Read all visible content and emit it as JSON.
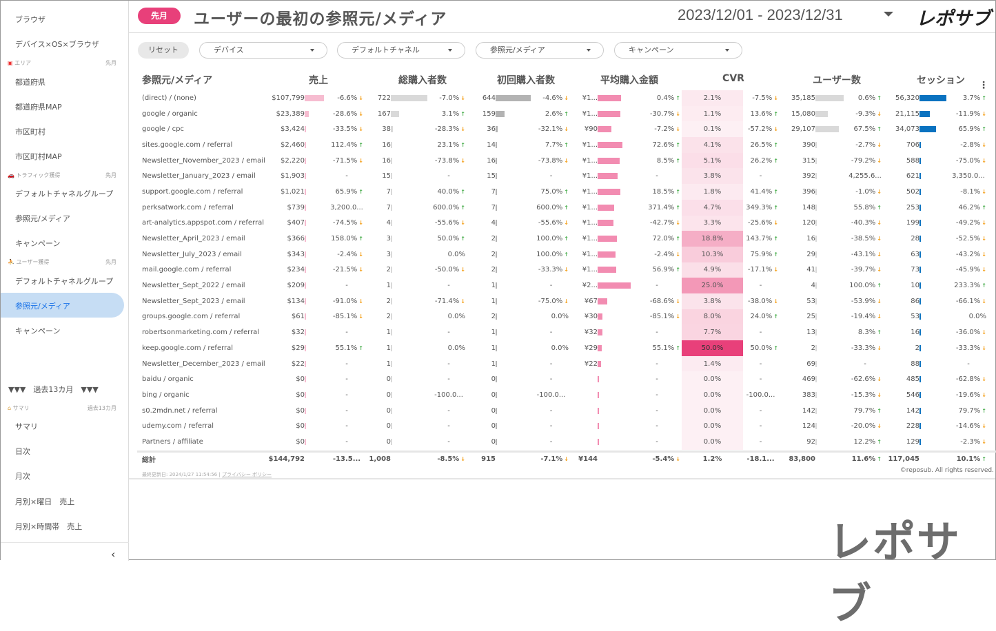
{
  "sidebar": {
    "items_top": [
      "ブラウザ",
      "デバイス×OS×ブラウザ"
    ],
    "sec_area": {
      "label": "エリア",
      "period": "先月",
      "icon": "japan-flag-icon"
    },
    "area": [
      "都道府県",
      "都道府県MAP",
      "市区町村",
      "市区町村MAP"
    ],
    "sec_traffic": {
      "label": "トラフィック獲得",
      "period": "先月",
      "icon": "car-icon"
    },
    "traffic": [
      "デフォルトチャネルグループ",
      "参照元/メディア",
      "キャンペーン"
    ],
    "sec_user": {
      "label": "ユーザー獲得",
      "period": "先月",
      "icon": "person-icon"
    },
    "user": [
      "デフォルトチャネルグループ",
      "参照元/メディア",
      "キャンペーン"
    ],
    "divider_label": "▼▼▼　過去13カ月　▼▼▼",
    "sec_summary": {
      "label": "サマリ",
      "period": "過去13カ月",
      "icon": "house-icon"
    },
    "summary": [
      "サマリ",
      "日次",
      "月次",
      "月別×曜日　売上",
      "月別×時間帯　売上"
    ],
    "collapse": "‹"
  },
  "header": {
    "period_badge": "先月",
    "title": "ユーザーの最初の参照元/メディア",
    "date_range": "2023/12/01 - 2023/12/31",
    "logo": "レポサブ"
  },
  "filters": {
    "reset": "リセット",
    "dropdowns": [
      "デバイス",
      "デフォルトチャネル",
      "参照元/メディア",
      "キャンペーン"
    ]
  },
  "colors": {
    "accent": "#e8407a",
    "sales_bar": "#f6bcd0",
    "purchasers_bar": "#d9d9d9",
    "first_bar": "#b3b3b3",
    "avg_bar": "#f28cb1",
    "users_bar": "#d9d9d9",
    "sessions_bar": "#0a72c0"
  },
  "table": {
    "headers": [
      "参照元/メディア",
      "売上",
      "総購入者数",
      "初回購入者数",
      "平均購入金額",
      "CVR",
      "ユーザー数",
      "セッション"
    ],
    "rows": [
      {
        "n": "(direct) / (none)",
        "s": "$107,799",
        "sc": "-6.6%",
        "p": "722",
        "pc": "-7.0%",
        "f": "644",
        "fc": "-4.6%",
        "a": "¥1...",
        "ab": 0.71,
        "ac": "0.4%",
        "c": "2.1%",
        "cc": "-7.5%",
        "u": "35,185",
        "uc": "0.6%",
        "se": "56,320",
        "sec": "3.7%"
      },
      {
        "n": "google / organic",
        "s": "$23,389",
        "sc": "-28.6%",
        "p": "167",
        "pc": "3.1%",
        "f": "159",
        "fc": "2.6%",
        "a": "¥1...",
        "ab": 0.69,
        "ac": "-30.7%",
        "c": "1.1%",
        "cc": "13.6%",
        "u": "15,080",
        "uc": "-9.3%",
        "se": "21,115",
        "sec": "-11.9%"
      },
      {
        "n": "google / cpc",
        "s": "$3,424",
        "sc": "-33.5%",
        "p": "38",
        "pc": "-28.3%",
        "f": "36",
        "fc": "-32.1%",
        "a": "¥90",
        "ab": 0.42,
        "ac": "-7.2%",
        "c": "0.1%",
        "cc": "-57.2%",
        "u": "29,107",
        "uc": "67.5%",
        "se": "34,073",
        "sec": "65.9%"
      },
      {
        "n": "sites.google.com / referral",
        "s": "$2,460",
        "sc": "112.4%",
        "p": "16",
        "pc": "23.1%",
        "f": "14",
        "fc": "7.7%",
        "a": "¥1...",
        "ab": 0.75,
        "ac": "72.6%",
        "c": "4.1%",
        "cc": "26.5%",
        "u": "390",
        "uc": "-2.7%",
        "se": "706",
        "sec": "-2.8%"
      },
      {
        "n": "Newsletter_November_2023 / email",
        "s": "$2,220",
        "sc": "-71.5%",
        "p": "16",
        "pc": "-73.8%",
        "f": "16",
        "fc": "-73.8%",
        "a": "¥1...",
        "ab": 0.67,
        "ac": "8.5%",
        "c": "5.1%",
        "cc": "26.2%",
        "u": "315",
        "uc": "-79.2%",
        "se": "588",
        "sec": "-75.0%"
      },
      {
        "n": "Newsletter_January_2023 / email",
        "s": "$1,903",
        "sc": "-",
        "p": "15",
        "pc": "-",
        "f": "15",
        "fc": "-",
        "a": "¥1...",
        "ab": 0.61,
        "ac": "-",
        "c": "3.8%",
        "cc": "-",
        "u": "392",
        "uc": "4,255.6...",
        "se": "621",
        "sec": "3,350.0..."
      },
      {
        "n": "support.google.com / referral",
        "s": "$1,021",
        "sc": "65.9%",
        "p": "7",
        "pc": "40.0%",
        "f": "7",
        "fc": "75.0%",
        "a": "¥1...",
        "ab": 0.69,
        "ac": "18.5%",
        "c": "1.8%",
        "cc": "41.4%",
        "u": "396",
        "uc": "-1.0%",
        "se": "502",
        "sec": "-8.1%"
      },
      {
        "n": "perksatwork.com / referral",
        "s": "$739",
        "sc": "3,200.0...",
        "p": "7",
        "pc": "600.0%",
        "f": "7",
        "fc": "600.0%",
        "a": "¥1...",
        "ab": 0.5,
        "ac": "371.4%",
        "c": "4.7%",
        "cc": "349.3%",
        "u": "148",
        "uc": "55.8%",
        "se": "253",
        "sec": "46.2%"
      },
      {
        "n": "art-analytics.appspot.com / referral",
        "s": "$407",
        "sc": "-74.5%",
        "p": "4",
        "pc": "-55.6%",
        "f": "4",
        "fc": "-55.6%",
        "a": "¥1...",
        "ab": 0.48,
        "ac": "-42.7%",
        "c": "3.3%",
        "cc": "-25.6%",
        "u": "120",
        "uc": "-40.3%",
        "se": "199",
        "sec": "-49.2%"
      },
      {
        "n": "Newsletter_April_2023 / email",
        "s": "$366",
        "sc": "158.0%",
        "p": "3",
        "pc": "50.0%",
        "f": "2",
        "fc": "100.0%",
        "a": "¥1...",
        "ab": 0.58,
        "ac": "72.0%",
        "c": "18.8%",
        "cc": "143.7%",
        "u": "16",
        "uc": "-38.5%",
        "se": "28",
        "sec": "-52.5%"
      },
      {
        "n": "Newsletter_July_2023 / email",
        "s": "$343",
        "sc": "-2.4%",
        "p": "3",
        "pc": "0.0%",
        "f": "2",
        "fc": "100.0%",
        "a": "¥1...",
        "ab": 0.54,
        "ac": "-2.4%",
        "c": "10.3%",
        "cc": "75.9%",
        "u": "29",
        "uc": "-43.1%",
        "se": "63",
        "sec": "-43.2%"
      },
      {
        "n": "mail.google.com / referral",
        "s": "$234",
        "sc": "-21.5%",
        "p": "2",
        "pc": "-50.0%",
        "f": "2",
        "fc": "-33.3%",
        "a": "¥1...",
        "ab": 0.56,
        "ac": "56.9%",
        "c": "4.9%",
        "cc": "-17.1%",
        "u": "41",
        "uc": "-39.7%",
        "se": "73",
        "sec": "-45.9%"
      },
      {
        "n": "Newsletter_Sept_2022 / email",
        "s": "$209",
        "sc": "-",
        "p": "1",
        "pc": "-",
        "f": "1",
        "fc": "-",
        "a": "¥2...",
        "ab": 1.0,
        "ac": "-",
        "c": "25.0%",
        "cc": "-",
        "u": "4",
        "uc": "100.0%",
        "se": "10",
        "sec": "233.3%"
      },
      {
        "n": "Newsletter_Sept_2023 / email",
        "s": "$134",
        "sc": "-91.0%",
        "p": "2",
        "pc": "-71.4%",
        "f": "1",
        "fc": "-75.0%",
        "a": "¥67",
        "ab": 0.3,
        "ac": "-68.6%",
        "c": "3.8%",
        "cc": "-38.0%",
        "u": "53",
        "uc": "-53.9%",
        "se": "86",
        "sec": "-66.1%"
      },
      {
        "n": "groups.google.com / referral",
        "s": "$61",
        "sc": "-85.1%",
        "p": "2",
        "pc": "0.0%",
        "f": "2",
        "fc": "0.0%",
        "a": "¥30",
        "ab": 0.14,
        "ac": "-85.1%",
        "c": "8.0%",
        "cc": "24.0%",
        "u": "25",
        "uc": "-19.4%",
        "se": "53",
        "sec": "0.0%"
      },
      {
        "n": "robertsonmarketing.com / referral",
        "s": "$32",
        "sc": "-",
        "p": "1",
        "pc": "-",
        "f": "1",
        "fc": "-",
        "a": "¥32",
        "ab": 0.15,
        "ac": "-",
        "c": "7.7%",
        "cc": "-",
        "u": "13",
        "uc": "8.3%",
        "se": "16",
        "sec": "-36.0%"
      },
      {
        "n": "keep.google.com / referral",
        "s": "$29",
        "sc": "55.1%",
        "p": "1",
        "pc": "0.0%",
        "f": "1",
        "fc": "0.0%",
        "a": "¥29",
        "ab": 0.13,
        "ac": "55.1%",
        "c": "50.0%",
        "cc": "50.0%",
        "u": "2",
        "uc": "-33.3%",
        "se": "2",
        "sec": "-33.3%"
      },
      {
        "n": "Newsletter_December_2023 / email",
        "s": "$22",
        "sc": "-",
        "p": "1",
        "pc": "-",
        "f": "1",
        "fc": "-",
        "a": "¥22",
        "ab": 0.1,
        "ac": "-",
        "c": "1.4%",
        "cc": "-",
        "u": "69",
        "uc": "-",
        "se": "88",
        "sec": "-"
      },
      {
        "n": "baidu / organic",
        "s": "$0",
        "sc": "-",
        "p": "0",
        "pc": "-",
        "f": "0",
        "fc": "-",
        "a": "",
        "ab": 0,
        "ac": "-",
        "c": "0.0%",
        "cc": "-",
        "u": "469",
        "uc": "-62.6%",
        "se": "485",
        "sec": "-62.8%"
      },
      {
        "n": "bing / organic",
        "s": "$0",
        "sc": "-",
        "p": "0",
        "pc": "-100.0...",
        "f": "0",
        "fc": "-100.0...",
        "a": "",
        "ab": 0,
        "ac": "-",
        "c": "0.0%",
        "cc": "-100.0...",
        "u": "383",
        "uc": "-15.3%",
        "se": "546",
        "sec": "-19.6%"
      },
      {
        "n": "s0.2mdn.net / referral",
        "s": "$0",
        "sc": "-",
        "p": "0",
        "pc": "-",
        "f": "0",
        "fc": "-",
        "a": "",
        "ab": 0,
        "ac": "-",
        "c": "0.0%",
        "cc": "-",
        "u": "142",
        "uc": "79.7%",
        "se": "142",
        "sec": "79.7%"
      },
      {
        "n": "udemy.com / referral",
        "s": "$0",
        "sc": "-",
        "p": "0",
        "pc": "-",
        "f": "0",
        "fc": "-",
        "a": "",
        "ab": 0,
        "ac": "-",
        "c": "0.0%",
        "cc": "-",
        "u": "124",
        "uc": "-20.0%",
        "se": "228",
        "sec": "-14.6%"
      },
      {
        "n": "Partners / affiliate",
        "s": "$0",
        "sc": "-",
        "p": "0",
        "pc": "-",
        "f": "0",
        "fc": "-",
        "a": "",
        "ab": 0,
        "ac": "-",
        "c": "0.0%",
        "cc": "-",
        "u": "92",
        "uc": "12.2%",
        "se": "129",
        "sec": "-2.3%"
      }
    ],
    "total": {
      "n": "総計",
      "s": "$144,792",
      "sc": "-13.5...",
      "p": "1,008",
      "pc": "-8.5%",
      "f": "915",
      "fc": "-7.1%",
      "a": "¥144",
      "ac": "-5.4%",
      "c": "1.2%",
      "cc": "-18.1...",
      "u": "83,800",
      "uc": "11.6%",
      "se": "117,045",
      "sec": "10.1%"
    }
  },
  "footer": {
    "updated": "最終更新日: 2024/1/27 11:54:56",
    "sep": "|",
    "privacy": "プライバシー ポリシー",
    "copyright": "©reposub. All rights reserved."
  },
  "watermark": "レポサブ"
}
